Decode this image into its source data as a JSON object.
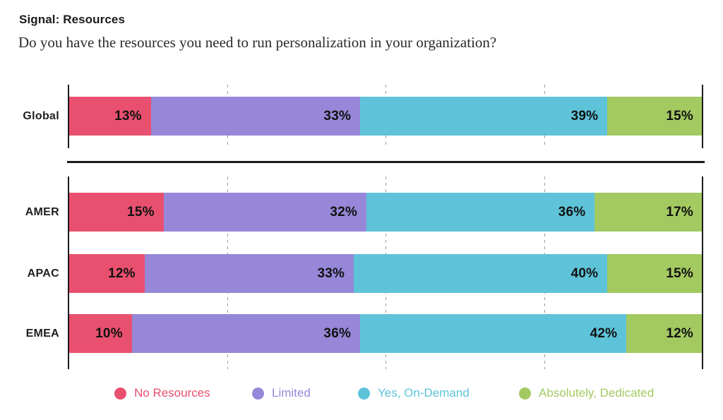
{
  "header": {
    "title": "Signal: Resources",
    "subtitle": "Do you have the resources you need to run personalization in your organization?"
  },
  "chart_data": {
    "type": "bar",
    "orientation": "horizontal",
    "stacked": true,
    "value_unit": "%",
    "xlim": [
      0,
      100
    ],
    "gridlines_percent": [
      25,
      50,
      75
    ],
    "grid": "dashed-vertical",
    "legend_position": "bottom",
    "data_labels": "inside end of each segment, bold black, format {value}%",
    "categories": [
      "Global",
      "AMER",
      "APAC",
      "EMEA"
    ],
    "category_groups": [
      [
        "Global"
      ],
      [
        "AMER",
        "APAC",
        "EMEA"
      ]
    ],
    "series": [
      {
        "name": "No Resources",
        "color": "#E9506F",
        "values": [
          13,
          15,
          12,
          10
        ]
      },
      {
        "name": "Limited",
        "color": "#9787D8",
        "values": [
          33,
          32,
          33,
          36
        ]
      },
      {
        "name": "Yes, On-Demand",
        "color": "#5EC3D9",
        "values": [
          39,
          36,
          40,
          42
        ]
      },
      {
        "name": "Absolutely, Dedicated",
        "color": "#A3C961",
        "values": [
          15,
          17,
          15,
          12
        ]
      }
    ]
  },
  "colors": {
    "text": "#1C1C1C",
    "axis": "#1A1A1A",
    "gridline": "#9A9A9A",
    "background": "#FFFFFF"
  }
}
